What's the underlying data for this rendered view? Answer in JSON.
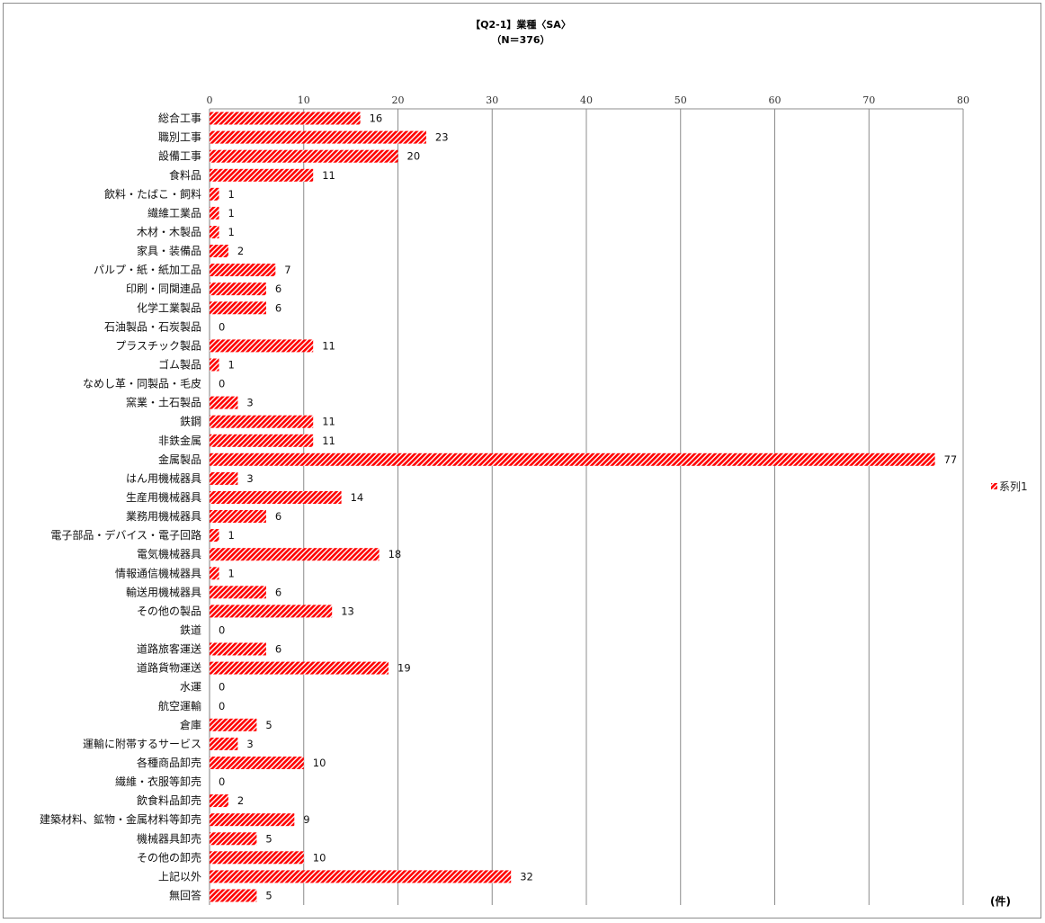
{
  "chart_data": {
    "type": "bar",
    "orientation": "horizontal",
    "title": "【Q2-1】業種〈SA〉",
    "subtitle": "（N＝376）",
    "unit_label": "(件)",
    "xlim": [
      0,
      80
    ],
    "x_ticks": [
      0,
      10,
      20,
      30,
      40,
      50,
      60,
      70,
      80
    ],
    "grid": true,
    "legend_position": "right",
    "series": [
      {
        "name": "系列1",
        "color": "#ff0000",
        "pattern": "diagonal-hatch",
        "values": [
          16,
          23,
          20,
          11,
          1,
          1,
          1,
          2,
          7,
          6,
          6,
          0,
          11,
          1,
          0,
          3,
          11,
          11,
          77,
          3,
          14,
          6,
          1,
          18,
          1,
          6,
          13,
          0,
          6,
          19,
          0,
          0,
          5,
          3,
          10,
          0,
          2,
          9,
          5,
          10,
          32,
          5
        ]
      }
    ],
    "categories": [
      "総合工事",
      "職別工事",
      "設備工事",
      "食料品",
      "飲料・たばこ・飼料",
      "繊維工業品",
      "木材・木製品",
      "家具・装備品",
      "パルプ・紙・紙加工品",
      "印刷・同関連品",
      "化学工業製品",
      "石油製品・石炭製品",
      "プラスチック製品",
      "ゴム製品",
      "なめし革・同製品・毛皮",
      "窯業・土石製品",
      "鉄鋼",
      "非鉄金属",
      "金属製品",
      "はん用機械器具",
      "生産用機械器具",
      "業務用機械器具",
      "電子部品・デバイス・電子回路",
      "電気機械器具",
      "情報通信機械器具",
      "輸送用機械器具",
      "その他の製品",
      "鉄道",
      "道路旅客運送",
      "道路貨物運送",
      "水運",
      "航空運輸",
      "倉庫",
      "運輸に附帯するサービス",
      "各種商品卸売",
      "繊維・衣服等卸売",
      "飲食料品卸売",
      "建築材料、鉱物・金属材料等卸売",
      "機械器具卸売",
      "その他の卸売",
      "上記以外",
      "無回答"
    ]
  }
}
